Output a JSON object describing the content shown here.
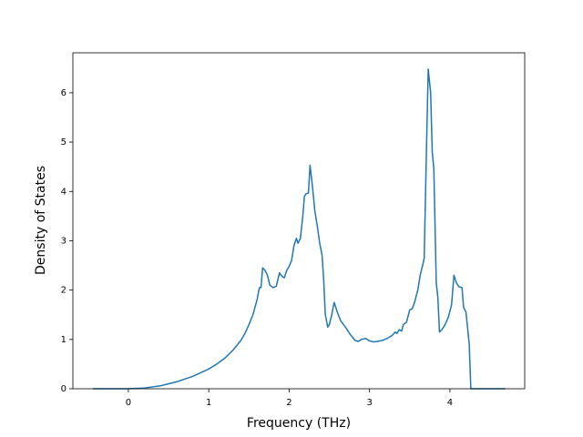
{
  "chart_data": {
    "type": "line",
    "x_label": "Frequency (THz)",
    "y_label": "Density of States",
    "xlim": [
      -0.69,
      4.93
    ],
    "ylim": [
      0,
      6.81
    ],
    "xticks": [
      0,
      1,
      2,
      3,
      4
    ],
    "yticks": [
      0,
      1,
      2,
      3,
      4,
      5,
      6
    ],
    "x": [
      -0.44,
      0,
      0.2,
      0.4,
      0.6,
      0.8,
      1.0,
      1.1,
      1.2,
      1.3,
      1.4,
      1.45,
      1.5,
      1.55,
      1.6,
      1.63,
      1.65,
      1.67,
      1.7,
      1.73,
      1.76,
      1.8,
      1.84,
      1.88,
      1.91,
      1.94,
      1.97,
      2.0,
      2.03,
      2.06,
      2.09,
      2.11,
      2.14,
      2.17,
      2.19,
      2.21,
      2.24,
      2.26,
      2.29,
      2.32,
      2.35,
      2.38,
      2.41,
      2.43,
      2.45,
      2.48,
      2.5,
      2.53,
      2.56,
      2.6,
      2.64,
      2.7,
      2.76,
      2.82,
      2.86,
      2.9,
      2.95,
      3.0,
      3.05,
      3.1,
      3.16,
      3.22,
      3.28,
      3.32,
      3.34,
      3.37,
      3.4,
      3.42,
      3.46,
      3.5,
      3.53,
      3.56,
      3.6,
      3.63,
      3.66,
      3.68,
      3.71,
      3.73,
      3.76,
      3.78,
      3.8,
      3.83,
      3.85,
      3.87,
      3.9,
      3.94,
      3.98,
      4.02,
      4.05,
      4.08,
      4.11,
      4.15,
      4.17,
      4.2,
      4.24,
      4.26,
      4.69
    ],
    "series": [
      {
        "color": "#1f77b4",
        "values": [
          0,
          0,
          0.015,
          0.06,
          0.14,
          0.25,
          0.4,
          0.5,
          0.62,
          0.78,
          0.98,
          1.12,
          1.3,
          1.5,
          1.8,
          2.05,
          2.05,
          2.45,
          2.4,
          2.3,
          2.1,
          2.05,
          2.08,
          2.35,
          2.28,
          2.25,
          2.4,
          2.48,
          2.6,
          2.9,
          3.05,
          2.95,
          3.05,
          3.5,
          3.9,
          3.95,
          3.97,
          4.53,
          4.1,
          3.6,
          3.3,
          2.95,
          2.7,
          2.2,
          1.5,
          1.25,
          1.3,
          1.5,
          1.75,
          1.55,
          1.38,
          1.25,
          1.1,
          0.98,
          0.96,
          1.0,
          1.02,
          0.97,
          0.95,
          0.96,
          0.98,
          1.02,
          1.08,
          1.15,
          1.12,
          1.2,
          1.17,
          1.3,
          1.35,
          1.6,
          1.62,
          1.75,
          2.0,
          2.3,
          2.5,
          2.65,
          5.0,
          6.48,
          6.0,
          4.8,
          4.45,
          2.15,
          1.85,
          1.15,
          1.2,
          1.3,
          1.45,
          1.7,
          2.3,
          2.15,
          2.07,
          2.05,
          1.65,
          1.55,
          0.9,
          0,
          0
        ]
      }
    ]
  }
}
